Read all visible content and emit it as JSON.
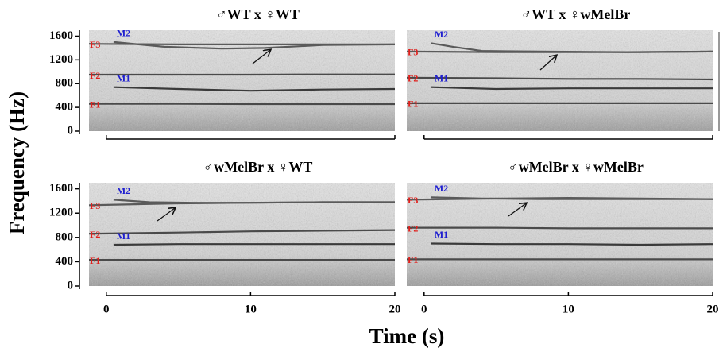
{
  "ylabel": "Frequency (Hz)",
  "xlabel": "Time (s)",
  "chart_data": [
    {
      "type": "line",
      "title": "♂WT x ♀WT",
      "xlim": [
        -1.2,
        20
      ],
      "ylim": [
        0,
        1700
      ],
      "yticks": [
        0,
        400,
        800,
        1200,
        1600
      ],
      "series": [
        {
          "name": "F1",
          "name_color": "#e0201c",
          "color": "#4a4a4a",
          "x": [
            -1.2,
            5,
            10,
            15,
            20
          ],
          "values": [
            460,
            460,
            455,
            455,
            455
          ]
        },
        {
          "name": "F2",
          "name_color": "#e0201c",
          "color": "#4a4a4a",
          "x": [
            -1.2,
            5,
            10,
            15,
            20
          ],
          "values": [
            950,
            950,
            950,
            955,
            955
          ]
        },
        {
          "name": "F3",
          "name_color": "#e0201c",
          "color": "#5a5a5a",
          "x": [
            -1.2,
            5,
            10,
            15,
            20
          ],
          "values": [
            1470,
            1460,
            1460,
            1460,
            1460
          ]
        },
        {
          "name": "M1",
          "name_color": "#1f1fd0",
          "color": "#3a3a3a",
          "x": [
            0.5,
            5,
            10,
            15,
            20
          ],
          "values": [
            740,
            710,
            680,
            700,
            710
          ]
        },
        {
          "name": "M2",
          "name_color": "#1f1fd0",
          "color": "#5a5a5a",
          "x": [
            0.5,
            4,
            8,
            11,
            15,
            20
          ],
          "values": [
            1500,
            1420,
            1390,
            1400,
            1450,
            1460
          ]
        }
      ]
    },
    {
      "type": "line",
      "title": "♂WT x ♀wMelBr",
      "xlim": [
        -1.2,
        20
      ],
      "ylim": [
        0,
        1700
      ],
      "series": [
        {
          "name": "F1",
          "name_color": "#e0201c",
          "color": "#4a4a4a",
          "x": [
            -1.2,
            5,
            10,
            15,
            20
          ],
          "values": [
            470,
            470,
            470,
            470,
            470
          ]
        },
        {
          "name": "F2",
          "name_color": "#e0201c",
          "color": "#4a4a4a",
          "x": [
            -1.2,
            5,
            10,
            15,
            20
          ],
          "values": [
            900,
            890,
            880,
            880,
            870
          ]
        },
        {
          "name": "F3",
          "name_color": "#e0201c",
          "color": "#5a5a5a",
          "x": [
            -1.2,
            5,
            10,
            15,
            20
          ],
          "values": [
            1340,
            1330,
            1330,
            1330,
            1340
          ]
        },
        {
          "name": "M1",
          "name_color": "#1f1fd0",
          "color": "#3a3a3a",
          "x": [
            0.5,
            5,
            10,
            15,
            20
          ],
          "values": [
            740,
            710,
            720,
            720,
            720
          ]
        },
        {
          "name": "M2",
          "name_color": "#1f1fd0",
          "color": "#5a5a5a",
          "x": [
            0.5,
            2,
            4,
            8,
            14,
            20
          ],
          "values": [
            1480,
            1420,
            1350,
            1340,
            1330,
            1340
          ]
        }
      ]
    },
    {
      "type": "line",
      "title": "♂wMelBr x ♀WT",
      "xlim": [
        -1.2,
        20
      ],
      "ylim": [
        0,
        1700
      ],
      "yticks": [
        0,
        400,
        800,
        1200,
        1600
      ],
      "xticks": [
        0,
        10,
        20
      ],
      "series": [
        {
          "name": "F1",
          "name_color": "#e0201c",
          "color": "#4a4a4a",
          "x": [
            -1.2,
            5,
            10,
            15,
            20
          ],
          "values": [
            430,
            430,
            430,
            430,
            430
          ]
        },
        {
          "name": "F2",
          "name_color": "#e0201c",
          "color": "#4a4a4a",
          "x": [
            -1.2,
            5,
            10,
            15,
            20
          ],
          "values": [
            860,
            880,
            900,
            910,
            920
          ]
        },
        {
          "name": "F3",
          "name_color": "#e0201c",
          "color": "#5a5a5a",
          "x": [
            -1.2,
            5,
            10,
            15,
            20
          ],
          "values": [
            1330,
            1360,
            1370,
            1380,
            1380
          ]
        },
        {
          "name": "M1",
          "name_color": "#1f1fd0",
          "color": "#3a3a3a",
          "x": [
            0.5,
            5,
            10,
            15,
            20
          ],
          "values": [
            680,
            690,
            690,
            690,
            690
          ]
        },
        {
          "name": "M2",
          "name_color": "#1f1fd0",
          "color": "#5a5a5a",
          "x": [
            0.5,
            3,
            6,
            10,
            15,
            20
          ],
          "values": [
            1420,
            1380,
            1370,
            1370,
            1380,
            1380
          ]
        }
      ]
    },
    {
      "type": "line",
      "title": "♂wMelBr x ♀wMelBr",
      "xlim": [
        -1.2,
        20
      ],
      "ylim": [
        0,
        1700
      ],
      "xticks": [
        0,
        10,
        20
      ],
      "series": [
        {
          "name": "F1",
          "name_color": "#e0201c",
          "color": "#4a4a4a",
          "x": [
            -1.2,
            5,
            10,
            15,
            20
          ],
          "values": [
            440,
            440,
            440,
            440,
            440
          ]
        },
        {
          "name": "F2",
          "name_color": "#e0201c",
          "color": "#4a4a4a",
          "x": [
            -1.2,
            5,
            10,
            15,
            20
          ],
          "values": [
            960,
            960,
            950,
            950,
            950
          ]
        },
        {
          "name": "F3",
          "name_color": "#e0201c",
          "color": "#5a5a5a",
          "x": [
            -1.2,
            5,
            10,
            15,
            20
          ],
          "values": [
            1420,
            1440,
            1450,
            1440,
            1430
          ]
        },
        {
          "name": "M1",
          "name_color": "#1f1fd0",
          "color": "#3a3a3a",
          "x": [
            0.5,
            5,
            10,
            15,
            20
          ],
          "values": [
            700,
            690,
            690,
            680,
            690
          ]
        },
        {
          "name": "M2",
          "name_color": "#1f1fd0",
          "color": "#5a5a5a",
          "x": [
            0.5,
            4,
            8,
            12,
            16,
            20
          ],
          "values": [
            1460,
            1440,
            1430,
            1430,
            1430,
            1430
          ]
        }
      ]
    }
  ]
}
